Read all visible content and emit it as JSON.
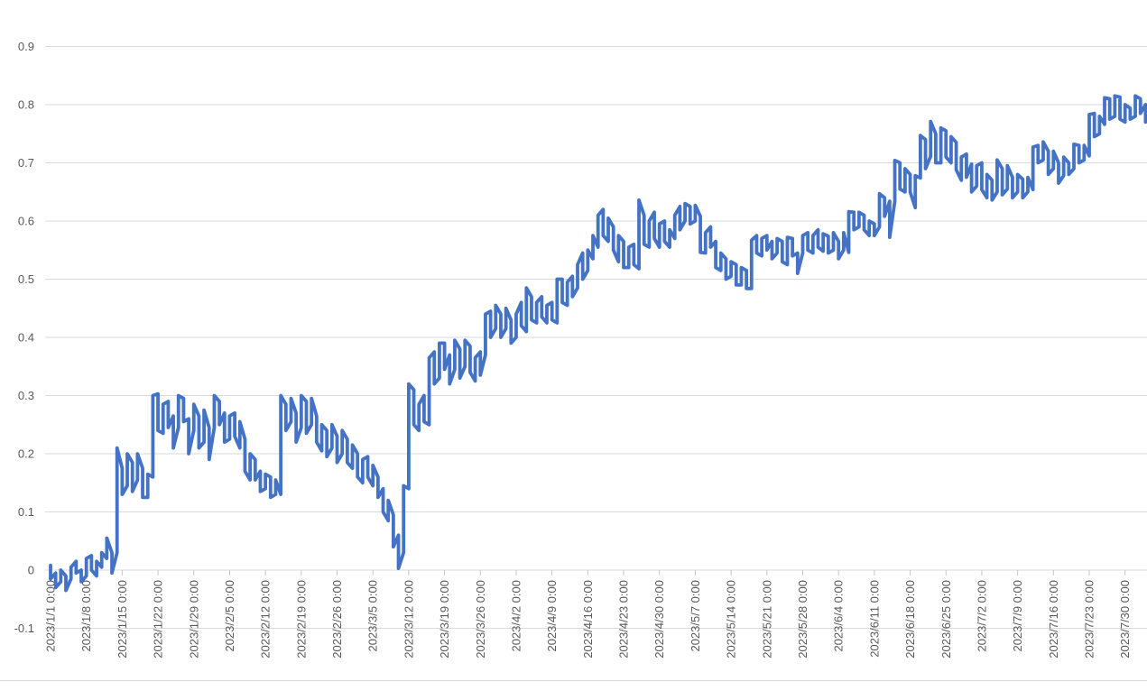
{
  "page": {
    "background": "#ffffff"
  },
  "chart_data": {
    "type": "line",
    "title": "",
    "legend": false,
    "grid": true,
    "style": {
      "series_color": "#4472C4",
      "gridline_color": "#D9D9D9",
      "axis_text_color": "#595959",
      "tick_color": "#C6C6C6",
      "bottom_border_color": "#D9D9D9"
    },
    "y_axis": {
      "min": -0.1,
      "max": 0.9,
      "step": 0.1,
      "tick_labels": [
        "0.9",
        "0.8",
        "0.7",
        "0.6",
        "0.5",
        "0.4",
        "0.3",
        "0.2",
        "0.1",
        "0",
        "-0.1"
      ]
    },
    "x_axis": {
      "start": "2023/1/1 0:00",
      "tick_interval_days": 7,
      "tick_labels": [
        "2023/1/1 0:00",
        "2023/1/8 0:00",
        "2023/1/15 0:00",
        "2023/1/22 0:00",
        "2023/1/29 0:00",
        "2023/2/5 0:00",
        "2023/2/12 0:00",
        "2023/2/19 0:00",
        "2023/2/26 0:00",
        "2023/3/5 0:00",
        "2023/3/12 0:00",
        "2023/3/19 0:00",
        "2023/3/26 0:00",
        "2023/4/2 0:00",
        "2023/4/9 0:00",
        "2023/4/16 0:00",
        "2023/4/23 0:00",
        "2023/4/30 0:00",
        "2023/5/7 0:00",
        "2023/5/14 0:00",
        "2023/5/21 0:00",
        "2023/5/28 0:00",
        "2023/6/4 0:00",
        "2023/6/11 0:00",
        "2023/6/18 0:00",
        "2023/6/25 0:00",
        "2023/7/2 0:00",
        "2023/7/9 0:00",
        "2023/7/16 0:00",
        "2023/7/23 0:00",
        "2023/7/30 0:00"
      ]
    },
    "series": [
      {
        "name": "value",
        "color": "#4472C4",
        "daily_low_high": [
          [
            -0.015,
            0.008
          ],
          [
            -0.03,
            -0.005
          ],
          [
            -0.02,
            0.0
          ],
          [
            -0.035,
            -0.01
          ],
          [
            -0.015,
            0.005
          ],
          [
            -0.005,
            0.015
          ],
          [
            -0.02,
            0.0
          ],
          [
            -0.01,
            0.02
          ],
          [
            0.0,
            0.025
          ],
          [
            -0.01,
            0.015
          ],
          [
            0.005,
            0.03
          ],
          [
            0.02,
            0.055
          ],
          [
            -0.005,
            0.03
          ],
          [
            0.03,
            0.21
          ],
          [
            0.13,
            0.175
          ],
          [
            0.145,
            0.2
          ],
          [
            0.135,
            0.185
          ],
          [
            0.155,
            0.2
          ],
          [
            0.125,
            0.175
          ],
          [
            0.125,
            0.165
          ],
          [
            0.16,
            0.3
          ],
          [
            0.24,
            0.303
          ],
          [
            0.235,
            0.285
          ],
          [
            0.245,
            0.29
          ],
          [
            0.21,
            0.265
          ],
          [
            0.245,
            0.3
          ],
          [
            0.255,
            0.295
          ],
          [
            0.2,
            0.26
          ],
          [
            0.24,
            0.285
          ],
          [
            0.21,
            0.265
          ],
          [
            0.22,
            0.275
          ],
          [
            0.19,
            0.245
          ],
          [
            0.245,
            0.3
          ],
          [
            0.25,
            0.29
          ],
          [
            0.22,
            0.27
          ],
          [
            0.225,
            0.265
          ],
          [
            0.23,
            0.27
          ],
          [
            0.21,
            0.255
          ],
          [
            0.17,
            0.225
          ],
          [
            0.155,
            0.2
          ],
          [
            0.155,
            0.19
          ],
          [
            0.135,
            0.17
          ],
          [
            0.14,
            0.165
          ],
          [
            0.125,
            0.16
          ],
          [
            0.13,
            0.155
          ],
          [
            0.13,
            0.3
          ],
          [
            0.24,
            0.285
          ],
          [
            0.255,
            0.295
          ],
          [
            0.22,
            0.27
          ],
          [
            0.245,
            0.3
          ],
          [
            0.235,
            0.29
          ],
          [
            0.25,
            0.295
          ],
          [
            0.22,
            0.265
          ],
          [
            0.205,
            0.25
          ],
          [
            0.195,
            0.24
          ],
          [
            0.21,
            0.25
          ],
          [
            0.185,
            0.23
          ],
          [
            0.2,
            0.24
          ],
          [
            0.185,
            0.225
          ],
          [
            0.175,
            0.215
          ],
          [
            0.16,
            0.2
          ],
          [
            0.15,
            0.19
          ],
          [
            0.16,
            0.195
          ],
          [
            0.145,
            0.18
          ],
          [
            0.125,
            0.16
          ],
          [
            0.1,
            0.14
          ],
          [
            0.085,
            0.12
          ],
          [
            0.04,
            0.095
          ],
          [
            0.003,
            0.06
          ],
          [
            0.03,
            0.145
          ],
          [
            0.14,
            0.32
          ],
          [
            0.25,
            0.31
          ],
          [
            0.24,
            0.285
          ],
          [
            0.255,
            0.3
          ],
          [
            0.25,
            0.365
          ],
          [
            0.32,
            0.375
          ],
          [
            0.33,
            0.39
          ],
          [
            0.345,
            0.39
          ],
          [
            0.32,
            0.37
          ],
          [
            0.345,
            0.395
          ],
          [
            0.33,
            0.38
          ],
          [
            0.35,
            0.395
          ],
          [
            0.34,
            0.385
          ],
          [
            0.325,
            0.365
          ],
          [
            0.335,
            0.375
          ],
          [
            0.37,
            0.44
          ],
          [
            0.4,
            0.445
          ],
          [
            0.415,
            0.455
          ],
          [
            0.4,
            0.44
          ],
          [
            0.415,
            0.45
          ],
          [
            0.39,
            0.43
          ],
          [
            0.4,
            0.44
          ],
          [
            0.42,
            0.46
          ],
          [
            0.41,
            0.485
          ],
          [
            0.43,
            0.47
          ],
          [
            0.425,
            0.46
          ],
          [
            0.435,
            0.47
          ],
          [
            0.425,
            0.455
          ],
          [
            0.43,
            0.46
          ],
          [
            0.425,
            0.5
          ],
          [
            0.46,
            0.5
          ],
          [
            0.455,
            0.495
          ],
          [
            0.47,
            0.505
          ],
          [
            0.485,
            0.525
          ],
          [
            0.5,
            0.545
          ],
          [
            0.515,
            0.55
          ],
          [
            0.535,
            0.575
          ],
          [
            0.555,
            0.61
          ],
          [
            0.575,
            0.62
          ],
          [
            0.565,
            0.605
          ],
          [
            0.55,
            0.59
          ],
          [
            0.53,
            0.575
          ],
          [
            0.52,
            0.565
          ],
          [
            0.52,
            0.555
          ],
          [
            0.525,
            0.56
          ],
          [
            0.518,
            0.636
          ],
          [
            0.56,
            0.61
          ],
          [
            0.555,
            0.6
          ],
          [
            0.57,
            0.615
          ],
          [
            0.555,
            0.595
          ],
          [
            0.565,
            0.6
          ],
          [
            0.555,
            0.585
          ],
          [
            0.57,
            0.61
          ],
          [
            0.585,
            0.625
          ],
          [
            0.6,
            0.63
          ],
          [
            0.595,
            0.625
          ],
          [
            0.6,
            0.627
          ],
          [
            0.546,
            0.608
          ],
          [
            0.545,
            0.58
          ],
          [
            0.555,
            0.59
          ],
          [
            0.52,
            0.565
          ],
          [
            0.515,
            0.545
          ],
          [
            0.5,
            0.535
          ],
          [
            0.505,
            0.53
          ],
          [
            0.49,
            0.525
          ],
          [
            0.49,
            0.52
          ],
          [
            0.484,
            0.515
          ],
          [
            0.484,
            0.567
          ],
          [
            0.545,
            0.575
          ],
          [
            0.54,
            0.57
          ],
          [
            0.55,
            0.575
          ],
          [
            0.535,
            0.565
          ],
          [
            0.545,
            0.57
          ],
          [
            0.53,
            0.565
          ],
          [
            0.525,
            0.572
          ],
          [
            0.54,
            0.57
          ],
          [
            0.51,
            0.545
          ],
          [
            0.545,
            0.575
          ],
          [
            0.55,
            0.58
          ],
          [
            0.545,
            0.575
          ],
          [
            0.555,
            0.585
          ],
          [
            0.548,
            0.578
          ],
          [
            0.545,
            0.574
          ],
          [
            0.55,
            0.58
          ],
          [
            0.535,
            0.565
          ],
          [
            0.55,
            0.58
          ],
          [
            0.546,
            0.616
          ],
          [
            0.585,
            0.615
          ],
          [
            0.59,
            0.615
          ],
          [
            0.585,
            0.61
          ],
          [
            0.575,
            0.6
          ],
          [
            0.575,
            0.595
          ],
          [
            0.59,
            0.647
          ],
          [
            0.608,
            0.64
          ],
          [
            0.572,
            0.634
          ],
          [
            0.634,
            0.704
          ],
          [
            0.655,
            0.7
          ],
          [
            0.65,
            0.69
          ],
          [
            0.65,
            0.68
          ],
          [
            0.623,
            0.678
          ],
          [
            0.674,
            0.747
          ],
          [
            0.69,
            0.74
          ],
          [
            0.711,
            0.771
          ],
          [
            0.7,
            0.75
          ],
          [
            0.7,
            0.76
          ],
          [
            0.71,
            0.755
          ],
          [
            0.7,
            0.745
          ],
          [
            0.688,
            0.735
          ],
          [
            0.67,
            0.71
          ],
          [
            0.675,
            0.715
          ],
          [
            0.65,
            0.698
          ],
          [
            0.66,
            0.695
          ],
          [
            0.654,
            0.7
          ],
          [
            0.64,
            0.68
          ],
          [
            0.636,
            0.67
          ],
          [
            0.65,
            0.705
          ],
          [
            0.645,
            0.69
          ],
          [
            0.655,
            0.695
          ],
          [
            0.64,
            0.675
          ],
          [
            0.65,
            0.68
          ],
          [
            0.64,
            0.672
          ],
          [
            0.65,
            0.675
          ],
          [
            0.654,
            0.727
          ],
          [
            0.7,
            0.73
          ],
          [
            0.705,
            0.736
          ],
          [
            0.68,
            0.72
          ],
          [
            0.69,
            0.72
          ],
          [
            0.665,
            0.7
          ],
          [
            0.678,
            0.71
          ],
          [
            0.68,
            0.7
          ],
          [
            0.69,
            0.732
          ],
          [
            0.7,
            0.73
          ],
          [
            0.705,
            0.73
          ],
          [
            0.712,
            0.783
          ],
          [
            0.745,
            0.785
          ],
          [
            0.75,
            0.78
          ],
          [
            0.766,
            0.812
          ],
          [
            0.775,
            0.81
          ],
          [
            0.78,
            0.815
          ],
          [
            0.775,
            0.813
          ],
          [
            0.77,
            0.8
          ],
          [
            0.775,
            0.794
          ],
          [
            0.78,
            0.815
          ],
          [
            0.785,
            0.81
          ],
          [
            0.77,
            0.8
          ],
          [
            0.775,
            0.805
          ],
          [
            0.76,
            0.8
          ]
        ]
      }
    ]
  }
}
